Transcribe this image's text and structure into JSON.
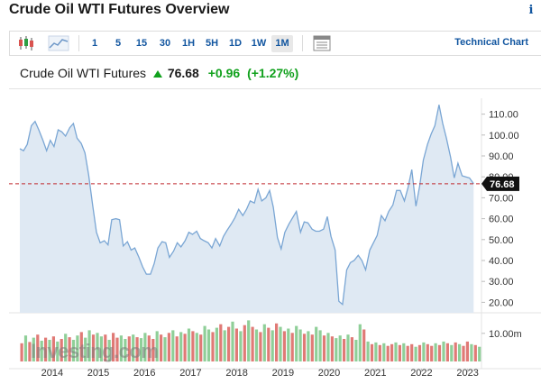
{
  "header": {
    "title": "Crude Oil WTI Futures Overview",
    "info_icon": "i"
  },
  "toolbar": {
    "icons": [
      "candlestick-icon",
      "area-chart-icon",
      "table-icon"
    ],
    "timeframes": [
      "1",
      "5",
      "15",
      "30",
      "1H",
      "5H",
      "1D",
      "1W",
      "1M"
    ],
    "active_timeframe": "1M",
    "technical_chart_label": "Technical Chart"
  },
  "quote": {
    "name": "Crude Oil WTI Futures",
    "price": "76.68",
    "change": "+0.96",
    "change_pct": "(+1.27%)",
    "direction": "up",
    "up_color": "#11a11d"
  },
  "watermark": "Investing.com",
  "chart_data": {
    "type": "area",
    "y_ticks": [
      "110.00",
      "100.00",
      "90.00",
      "80.00",
      "70.00",
      "60.00",
      "50.00",
      "40.00",
      "30.00",
      "20.00"
    ],
    "ylim": [
      15,
      115
    ],
    "x_ticks": [
      "2014",
      "2015",
      "2016",
      "2017",
      "2018",
      "2019",
      "2020",
      "2021",
      "2022",
      "2023"
    ],
    "current_price": 76.68,
    "current_price_label": "76.68",
    "line_color": "#7aa6d4",
    "fill_color": "#dfe9f3",
    "price_line_color": "#c0282d",
    "series": [
      {
        "values": [
          [
            2013.3,
            93.5
          ],
          [
            2013.38,
            92.5
          ],
          [
            2013.46,
            95.5
          ],
          [
            2013.55,
            104.5
          ],
          [
            2013.63,
            106.5
          ],
          [
            2013.71,
            102.5
          ],
          [
            2013.8,
            97.5
          ],
          [
            2013.88,
            92.5
          ],
          [
            2013.96,
            97.5
          ],
          [
            2014.04,
            94.5
          ],
          [
            2014.13,
            102.5
          ],
          [
            2014.21,
            101.5
          ],
          [
            2014.29,
            99.5
          ],
          [
            2014.38,
            103.5
          ],
          [
            2014.46,
            105.5
          ],
          [
            2014.54,
            98.5
          ],
          [
            2014.63,
            96.0
          ],
          [
            2014.71,
            91.5
          ],
          [
            2014.79,
            81.0
          ],
          [
            2014.88,
            66.0
          ],
          [
            2014.96,
            53.5
          ],
          [
            2015.04,
            48.5
          ],
          [
            2015.13,
            49.5
          ],
          [
            2015.21,
            47.5
          ],
          [
            2015.29,
            59.5
          ],
          [
            2015.38,
            60.0
          ],
          [
            2015.46,
            59.5
          ],
          [
            2015.54,
            47.0
          ],
          [
            2015.63,
            49.0
          ],
          [
            2015.71,
            45.0
          ],
          [
            2015.79,
            46.0
          ],
          [
            2015.88,
            41.5
          ],
          [
            2015.96,
            37.0
          ],
          [
            2016.04,
            33.5
          ],
          [
            2016.13,
            33.5
          ],
          [
            2016.21,
            38.5
          ],
          [
            2016.29,
            46.0
          ],
          [
            2016.38,
            49.0
          ],
          [
            2016.46,
            48.5
          ],
          [
            2016.54,
            41.5
          ],
          [
            2016.63,
            44.5
          ],
          [
            2016.71,
            48.5
          ],
          [
            2016.79,
            46.5
          ],
          [
            2016.88,
            49.5
          ],
          [
            2016.96,
            53.5
          ],
          [
            2017.04,
            52.5
          ],
          [
            2017.13,
            54.0
          ],
          [
            2017.21,
            50.5
          ],
          [
            2017.29,
            49.5
          ],
          [
            2017.38,
            48.5
          ],
          [
            2017.46,
            46.0
          ],
          [
            2017.54,
            50.5
          ],
          [
            2017.63,
            47.0
          ],
          [
            2017.71,
            51.5
          ],
          [
            2017.79,
            54.5
          ],
          [
            2017.88,
            57.5
          ],
          [
            2017.96,
            60.5
          ],
          [
            2018.04,
            64.5
          ],
          [
            2018.13,
            61.5
          ],
          [
            2018.21,
            64.5
          ],
          [
            2018.29,
            68.5
          ],
          [
            2018.38,
            67.5
          ],
          [
            2018.46,
            74.0
          ],
          [
            2018.54,
            68.5
          ],
          [
            2018.63,
            70.0
          ],
          [
            2018.71,
            73.5
          ],
          [
            2018.79,
            65.5
          ],
          [
            2018.88,
            51.0
          ],
          [
            2018.96,
            45.5
          ],
          [
            2019.04,
            53.5
          ],
          [
            2019.13,
            57.5
          ],
          [
            2019.21,
            60.5
          ],
          [
            2019.29,
            63.5
          ],
          [
            2019.38,
            53.5
          ],
          [
            2019.46,
            58.5
          ],
          [
            2019.54,
            58.0
          ],
          [
            2019.63,
            55.0
          ],
          [
            2019.71,
            54.0
          ],
          [
            2019.79,
            54.0
          ],
          [
            2019.88,
            55.0
          ],
          [
            2019.96,
            61.0
          ],
          [
            2020.04,
            51.5
          ],
          [
            2020.13,
            45.0
          ],
          [
            2020.21,
            20.5
          ],
          [
            2020.29,
            19.0
          ],
          [
            2020.38,
            35.5
          ],
          [
            2020.46,
            39.0
          ],
          [
            2020.54,
            40.0
          ],
          [
            2020.63,
            42.5
          ],
          [
            2020.71,
            40.0
          ],
          [
            2020.79,
            35.5
          ],
          [
            2020.88,
            45.0
          ],
          [
            2020.96,
            48.5
          ],
          [
            2021.04,
            52.0
          ],
          [
            2021.13,
            61.5
          ],
          [
            2021.21,
            59.0
          ],
          [
            2021.29,
            63.5
          ],
          [
            2021.38,
            66.5
          ],
          [
            2021.46,
            73.5
          ],
          [
            2021.54,
            73.5
          ],
          [
            2021.63,
            68.5
          ],
          [
            2021.71,
            75.0
          ],
          [
            2021.79,
            83.5
          ],
          [
            2021.88,
            66.0
          ],
          [
            2021.96,
            75.5
          ],
          [
            2022.04,
            88.0
          ],
          [
            2022.13,
            95.5
          ],
          [
            2022.21,
            100.5
          ],
          [
            2022.29,
            104.5
          ],
          [
            2022.38,
            114.5
          ],
          [
            2022.46,
            105.5
          ],
          [
            2022.54,
            98.5
          ],
          [
            2022.63,
            89.5
          ],
          [
            2022.71,
            79.5
          ],
          [
            2022.79,
            86.5
          ],
          [
            2022.88,
            80.5
          ],
          [
            2022.96,
            80.0
          ],
          [
            2023.04,
            79.5
          ],
          [
            2023.13,
            76.68
          ]
        ]
      }
    ],
    "volume": {
      "axis_label": "10.00m",
      "up_color": "#8fcf98",
      "down_color": "#e07a76",
      "bars": [
        [
          0.42,
          0
        ],
        [
          0.6,
          1
        ],
        [
          0.45,
          0
        ],
        [
          0.55,
          1
        ],
        [
          0.62,
          0
        ],
        [
          0.48,
          1
        ],
        [
          0.55,
          0
        ],
        [
          0.5,
          1
        ],
        [
          0.58,
          0
        ],
        [
          0.46,
          1
        ],
        [
          0.52,
          0
        ],
        [
          0.64,
          1
        ],
        [
          0.56,
          0
        ],
        [
          0.5,
          1
        ],
        [
          0.6,
          1
        ],
        [
          0.68,
          0
        ],
        [
          0.55,
          1
        ],
        [
          0.72,
          1
        ],
        [
          0.62,
          0
        ],
        [
          0.66,
          1
        ],
        [
          0.58,
          1
        ],
        [
          0.62,
          0
        ],
        [
          0.5,
          1
        ],
        [
          0.66,
          0
        ],
        [
          0.55,
          0
        ],
        [
          0.6,
          1
        ],
        [
          0.52,
          1
        ],
        [
          0.58,
          0
        ],
        [
          0.62,
          1
        ],
        [
          0.56,
          0
        ],
        [
          0.54,
          1
        ],
        [
          0.66,
          1
        ],
        [
          0.6,
          0
        ],
        [
          0.52,
          0
        ],
        [
          0.7,
          1
        ],
        [
          0.62,
          0
        ],
        [
          0.56,
          1
        ],
        [
          0.66,
          0
        ],
        [
          0.72,
          1
        ],
        [
          0.58,
          0
        ],
        [
          0.68,
          1
        ],
        [
          0.64,
          0
        ],
        [
          0.76,
          1
        ],
        [
          0.7,
          0
        ],
        [
          0.66,
          1
        ],
        [
          0.62,
          0
        ],
        [
          0.82,
          1
        ],
        [
          0.74,
          1
        ],
        [
          0.68,
          0
        ],
        [
          0.78,
          1
        ],
        [
          0.86,
          0
        ],
        [
          0.72,
          1
        ],
        [
          0.8,
          0
        ],
        [
          0.92,
          1
        ],
        [
          0.76,
          0
        ],
        [
          0.7,
          1
        ],
        [
          0.84,
          0
        ],
        [
          0.95,
          1
        ],
        [
          0.8,
          0
        ],
        [
          0.74,
          1
        ],
        [
          0.68,
          0
        ],
        [
          0.86,
          1
        ],
        [
          0.78,
          0
        ],
        [
          0.72,
          1
        ],
        [
          0.88,
          0
        ],
        [
          0.8,
          1
        ],
        [
          0.7,
          0
        ],
        [
          0.76,
          1
        ],
        [
          0.66,
          0
        ],
        [
          0.82,
          1
        ],
        [
          0.74,
          1
        ],
        [
          0.64,
          0
        ],
        [
          0.7,
          1
        ],
        [
          0.62,
          0
        ],
        [
          0.8,
          1
        ],
        [
          0.72,
          1
        ],
        [
          0.6,
          0
        ],
        [
          0.66,
          1
        ],
        [
          0.58,
          0
        ],
        [
          0.54,
          1
        ],
        [
          0.6,
          1
        ],
        [
          0.52,
          0
        ],
        [
          0.62,
          1
        ],
        [
          0.56,
          0
        ],
        [
          0.5,
          1
        ],
        [
          0.86,
          1
        ],
        [
          0.74,
          0
        ],
        [
          0.46,
          1
        ],
        [
          0.4,
          0
        ],
        [
          0.44,
          1
        ],
        [
          0.38,
          0
        ],
        [
          0.42,
          1
        ],
        [
          0.36,
          0
        ],
        [
          0.4,
          0
        ],
        [
          0.44,
          1
        ],
        [
          0.38,
          0
        ],
        [
          0.42,
          1
        ],
        [
          0.36,
          0
        ],
        [
          0.4,
          0
        ],
        [
          0.34,
          1
        ],
        [
          0.38,
          0
        ],
        [
          0.44,
          1
        ],
        [
          0.4,
          0
        ],
        [
          0.36,
          0
        ],
        [
          0.42,
          1
        ],
        [
          0.38,
          0
        ],
        [
          0.46,
          1
        ],
        [
          0.42,
          0
        ],
        [
          0.38,
          1
        ],
        [
          0.44,
          0
        ],
        [
          0.4,
          1
        ],
        [
          0.36,
          0
        ],
        [
          0.46,
          0
        ],
        [
          0.4,
          1
        ],
        [
          0.38,
          0
        ],
        [
          0.34,
          1
        ]
      ]
    }
  }
}
